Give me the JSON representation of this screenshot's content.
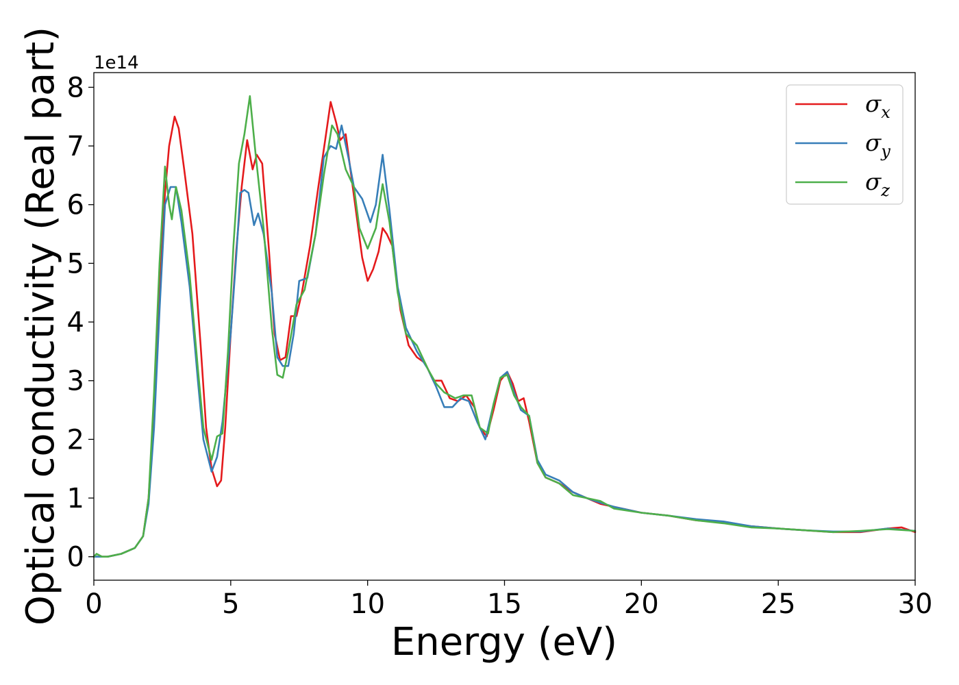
{
  "chart_data": {
    "type": "line",
    "title": "",
    "xlabel": "Energy (eV)",
    "ylabel": "Optical conductivity (Real part)",
    "y_offset_label": "1e14",
    "xlim": [
      0,
      30
    ],
    "ylim": [
      -0.4,
      8.25
    ],
    "xticks": [
      0,
      5,
      10,
      15,
      20,
      25,
      30
    ],
    "xtick_labels": [
      "0",
      "5",
      "10",
      "15",
      "20",
      "25",
      "30"
    ],
    "yticks": [
      0,
      1,
      2,
      3,
      4,
      5,
      6,
      7,
      8
    ],
    "ytick_labels": [
      "0",
      "1",
      "2",
      "3",
      "4",
      "5",
      "6",
      "7",
      "8"
    ],
    "grid": false,
    "legend_position": "top-right",
    "series": [
      {
        "name": "σ",
        "subscript": "x",
        "color": "#e41a1c",
        "points": [
          [
            0,
            0
          ],
          [
            0.5,
            0
          ],
          [
            1,
            0.05
          ],
          [
            1.5,
            0.15
          ],
          [
            1.8,
            0.35
          ],
          [
            2.0,
            1.0
          ],
          [
            2.2,
            2.5
          ],
          [
            2.4,
            4.5
          ],
          [
            2.6,
            6.2
          ],
          [
            2.75,
            7.0
          ],
          [
            2.95,
            7.5
          ],
          [
            3.1,
            7.3
          ],
          [
            3.3,
            6.6
          ],
          [
            3.6,
            5.5
          ],
          [
            3.9,
            3.6
          ],
          [
            4.1,
            2.2
          ],
          [
            4.3,
            1.5
          ],
          [
            4.5,
            1.2
          ],
          [
            4.65,
            1.3
          ],
          [
            4.8,
            2.2
          ],
          [
            5.0,
            3.8
          ],
          [
            5.2,
            5.2
          ],
          [
            5.4,
            6.3
          ],
          [
            5.6,
            7.1
          ],
          [
            5.8,
            6.6
          ],
          [
            5.95,
            6.85
          ],
          [
            6.15,
            6.7
          ],
          [
            6.4,
            5.2
          ],
          [
            6.6,
            3.8
          ],
          [
            6.8,
            3.35
          ],
          [
            7.0,
            3.4
          ],
          [
            7.2,
            4.1
          ],
          [
            7.4,
            4.1
          ],
          [
            7.6,
            4.5
          ],
          [
            7.9,
            5.3
          ],
          [
            8.2,
            6.3
          ],
          [
            8.45,
            7.1
          ],
          [
            8.65,
            7.75
          ],
          [
            8.85,
            7.4
          ],
          [
            9.0,
            7.1
          ],
          [
            9.2,
            7.2
          ],
          [
            9.4,
            6.5
          ],
          [
            9.6,
            5.8
          ],
          [
            9.8,
            5.1
          ],
          [
            10.0,
            4.7
          ],
          [
            10.2,
            4.9
          ],
          [
            10.4,
            5.2
          ],
          [
            10.55,
            5.6
          ],
          [
            10.7,
            5.5
          ],
          [
            10.9,
            5.3
          ],
          [
            11.2,
            4.2
          ],
          [
            11.5,
            3.6
          ],
          [
            11.8,
            3.4
          ],
          [
            12.1,
            3.3
          ],
          [
            12.4,
            3.0
          ],
          [
            12.7,
            3.0
          ],
          [
            13.0,
            2.7
          ],
          [
            13.3,
            2.65
          ],
          [
            13.6,
            2.75
          ],
          [
            13.9,
            2.55
          ],
          [
            14.1,
            2.2
          ],
          [
            14.35,
            2.05
          ],
          [
            14.6,
            2.5
          ],
          [
            14.85,
            3.0
          ],
          [
            15.1,
            3.15
          ],
          [
            15.3,
            2.95
          ],
          [
            15.5,
            2.65
          ],
          [
            15.7,
            2.7
          ],
          [
            15.9,
            2.3
          ],
          [
            16.2,
            1.6
          ],
          [
            16.5,
            1.35
          ],
          [
            17.0,
            1.25
          ],
          [
            17.5,
            1.1
          ],
          [
            18.0,
            1.0
          ],
          [
            18.5,
            0.9
          ],
          [
            19.0,
            0.85
          ],
          [
            20.0,
            0.75
          ],
          [
            21.0,
            0.7
          ],
          [
            22.0,
            0.62
          ],
          [
            23.0,
            0.58
          ],
          [
            24.0,
            0.52
          ],
          [
            25.0,
            0.48
          ],
          [
            26.0,
            0.45
          ],
          [
            27.0,
            0.42
          ],
          [
            28.0,
            0.42
          ],
          [
            29.0,
            0.48
          ],
          [
            29.5,
            0.5
          ],
          [
            30,
            0.42
          ]
        ]
      },
      {
        "name": "σ",
        "subscript": "y",
        "color": "#377eb8",
        "points": [
          [
            0,
            0
          ],
          [
            0.5,
            0
          ],
          [
            1,
            0.05
          ],
          [
            1.5,
            0.15
          ],
          [
            1.8,
            0.35
          ],
          [
            2.0,
            0.9
          ],
          [
            2.2,
            2.2
          ],
          [
            2.4,
            4.2
          ],
          [
            2.6,
            6.0
          ],
          [
            2.8,
            6.3
          ],
          [
            3.0,
            6.3
          ],
          [
            3.2,
            5.7
          ],
          [
            3.5,
            4.6
          ],
          [
            3.8,
            3.0
          ],
          [
            4.0,
            2.0
          ],
          [
            4.3,
            1.45
          ],
          [
            4.5,
            1.7
          ],
          [
            4.7,
            2.3
          ],
          [
            5.0,
            3.8
          ],
          [
            5.2,
            5.1
          ],
          [
            5.35,
            6.2
          ],
          [
            5.5,
            6.25
          ],
          [
            5.65,
            6.2
          ],
          [
            5.85,
            5.65
          ],
          [
            6.0,
            5.85
          ],
          [
            6.2,
            5.5
          ],
          [
            6.5,
            4.5
          ],
          [
            6.7,
            3.4
          ],
          [
            6.9,
            3.25
          ],
          [
            7.1,
            3.25
          ],
          [
            7.3,
            3.8
          ],
          [
            7.5,
            4.7
          ],
          [
            7.8,
            4.75
          ],
          [
            8.1,
            5.5
          ],
          [
            8.4,
            6.8
          ],
          [
            8.65,
            7.0
          ],
          [
            8.85,
            6.95
          ],
          [
            9.05,
            7.35
          ],
          [
            9.3,
            6.8
          ],
          [
            9.5,
            6.3
          ],
          [
            9.8,
            6.1
          ],
          [
            10.1,
            5.7
          ],
          [
            10.3,
            6.0
          ],
          [
            10.55,
            6.85
          ],
          [
            10.8,
            5.9
          ],
          [
            11.1,
            4.6
          ],
          [
            11.4,
            3.9
          ],
          [
            11.8,
            3.5
          ],
          [
            12.2,
            3.2
          ],
          [
            12.5,
            2.9
          ],
          [
            12.8,
            2.55
          ],
          [
            13.1,
            2.55
          ],
          [
            13.4,
            2.7
          ],
          [
            13.7,
            2.65
          ],
          [
            14.0,
            2.3
          ],
          [
            14.3,
            2.0
          ],
          [
            14.6,
            2.6
          ],
          [
            14.85,
            3.05
          ],
          [
            15.1,
            3.15
          ],
          [
            15.35,
            2.8
          ],
          [
            15.6,
            2.5
          ],
          [
            15.9,
            2.4
          ],
          [
            16.2,
            1.65
          ],
          [
            16.5,
            1.4
          ],
          [
            17.0,
            1.3
          ],
          [
            17.5,
            1.1
          ],
          [
            18.0,
            1.0
          ],
          [
            18.5,
            0.92
          ],
          [
            19.0,
            0.85
          ],
          [
            20.0,
            0.75
          ],
          [
            21.0,
            0.7
          ],
          [
            22.0,
            0.64
          ],
          [
            23.0,
            0.6
          ],
          [
            24.0,
            0.52
          ],
          [
            25.0,
            0.48
          ],
          [
            26.0,
            0.45
          ],
          [
            27.0,
            0.43
          ],
          [
            28.0,
            0.43
          ],
          [
            29.0,
            0.48
          ],
          [
            30,
            0.44
          ]
        ]
      },
      {
        "name": "σ",
        "subscript": "z",
        "color": "#4daf4a",
        "points": [
          [
            0,
            0
          ],
          [
            0.1,
            0.05
          ],
          [
            0.3,
            0
          ],
          [
            0.5,
            0
          ],
          [
            1,
            0.05
          ],
          [
            1.5,
            0.15
          ],
          [
            1.8,
            0.35
          ],
          [
            2.0,
            1.0
          ],
          [
            2.2,
            2.8
          ],
          [
            2.4,
            5.0
          ],
          [
            2.6,
            6.65
          ],
          [
            2.75,
            6.0
          ],
          [
            2.85,
            5.75
          ],
          [
            3.0,
            6.3
          ],
          [
            3.2,
            5.9
          ],
          [
            3.5,
            4.8
          ],
          [
            3.8,
            3.2
          ],
          [
            4.0,
            2.2
          ],
          [
            4.3,
            1.65
          ],
          [
            4.5,
            2.05
          ],
          [
            4.7,
            2.1
          ],
          [
            4.9,
            3.5
          ],
          [
            5.1,
            5.3
          ],
          [
            5.3,
            6.7
          ],
          [
            5.5,
            7.2
          ],
          [
            5.7,
            7.85
          ],
          [
            5.9,
            6.9
          ],
          [
            6.2,
            5.6
          ],
          [
            6.5,
            3.9
          ],
          [
            6.7,
            3.1
          ],
          [
            6.9,
            3.05
          ],
          [
            7.1,
            3.5
          ],
          [
            7.4,
            4.3
          ],
          [
            7.7,
            4.55
          ],
          [
            8.1,
            5.5
          ],
          [
            8.4,
            6.5
          ],
          [
            8.7,
            7.35
          ],
          [
            8.9,
            7.2
          ],
          [
            9.2,
            6.6
          ],
          [
            9.5,
            6.3
          ],
          [
            9.7,
            5.6
          ],
          [
            10.0,
            5.25
          ],
          [
            10.3,
            5.6
          ],
          [
            10.55,
            6.35
          ],
          [
            10.8,
            5.7
          ],
          [
            11.1,
            4.5
          ],
          [
            11.4,
            3.8
          ],
          [
            11.8,
            3.6
          ],
          [
            12.2,
            3.2
          ],
          [
            12.5,
            2.95
          ],
          [
            12.8,
            2.8
          ],
          [
            13.2,
            2.7
          ],
          [
            13.5,
            2.75
          ],
          [
            13.8,
            2.75
          ],
          [
            14.1,
            2.2
          ],
          [
            14.4,
            2.1
          ],
          [
            14.6,
            2.6
          ],
          [
            14.85,
            3.05
          ],
          [
            15.1,
            3.1
          ],
          [
            15.35,
            2.75
          ],
          [
            15.6,
            2.55
          ],
          [
            15.9,
            2.4
          ],
          [
            16.2,
            1.6
          ],
          [
            16.5,
            1.35
          ],
          [
            17.0,
            1.25
          ],
          [
            17.5,
            1.05
          ],
          [
            18.0,
            1.0
          ],
          [
            18.5,
            0.95
          ],
          [
            19.0,
            0.82
          ],
          [
            20.0,
            0.75
          ],
          [
            21.0,
            0.7
          ],
          [
            22.0,
            0.62
          ],
          [
            23.0,
            0.57
          ],
          [
            24.0,
            0.5
          ],
          [
            25.0,
            0.48
          ],
          [
            26.0,
            0.45
          ],
          [
            27.0,
            0.42
          ],
          [
            28.0,
            0.44
          ],
          [
            29.0,
            0.47
          ],
          [
            30,
            0.44
          ]
        ]
      }
    ]
  }
}
